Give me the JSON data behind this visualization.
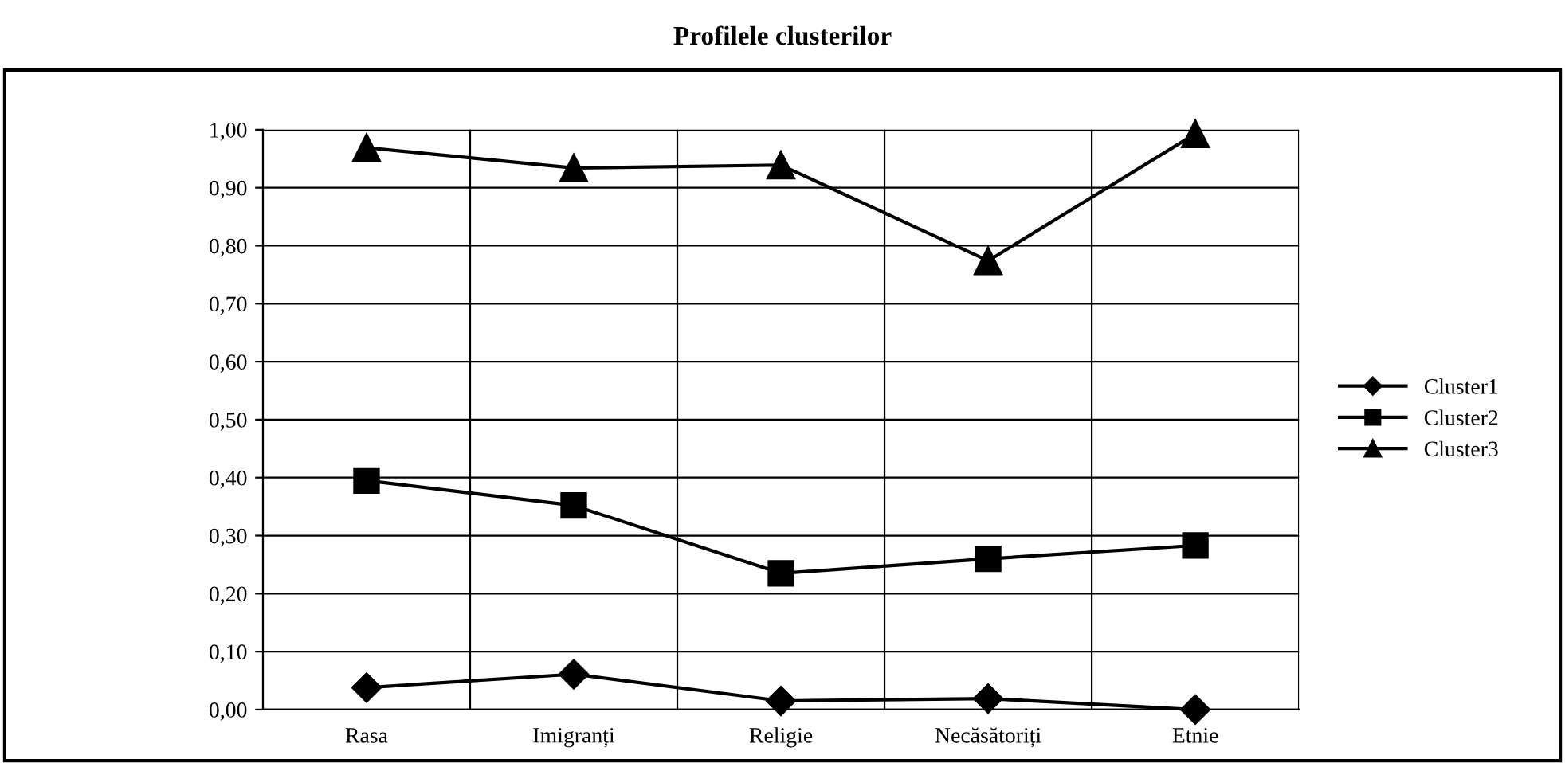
{
  "chart_data": {
    "type": "line",
    "title": "Profilele clusterilor",
    "categories": [
      "Rasa",
      "Imigranți",
      "Religie",
      "Necăsătoriți",
      "Etnie"
    ],
    "series": [
      {
        "name": "Cluster1",
        "color": "#000000",
        "marker": "diamond",
        "values": [
          0.038,
          0.061,
          0.015,
          0.019,
          0.0
        ]
      },
      {
        "name": "Cluster2",
        "color": "#000000",
        "marker": "square",
        "values": [
          0.395,
          0.352,
          0.235,
          0.26,
          0.283
        ]
      },
      {
        "name": "Cluster3",
        "color": "#000000",
        "marker": "triangle",
        "values": [
          0.969,
          0.934,
          0.939,
          0.774,
          0.993
        ]
      }
    ],
    "ylim": [
      0,
      1.0
    ],
    "yticks": [
      {
        "value": 0,
        "label": "0,00"
      },
      {
        "value": 0.1,
        "label": "0,10"
      },
      {
        "value": 0.2,
        "label": "0,20"
      },
      {
        "value": 0.3,
        "label": "0,30"
      },
      {
        "value": 0.4,
        "label": "0,40"
      },
      {
        "value": 0.5,
        "label": "0,50"
      },
      {
        "value": 0.6,
        "label": "0,60"
      },
      {
        "value": 0.7,
        "label": "0,70"
      },
      {
        "value": 0.8,
        "label": "0,80"
      },
      {
        "value": 0.9,
        "label": "0,90"
      },
      {
        "value": 1.0,
        "label": "1,00"
      }
    ],
    "grid": true,
    "legend": "right",
    "line_style": "solid"
  }
}
